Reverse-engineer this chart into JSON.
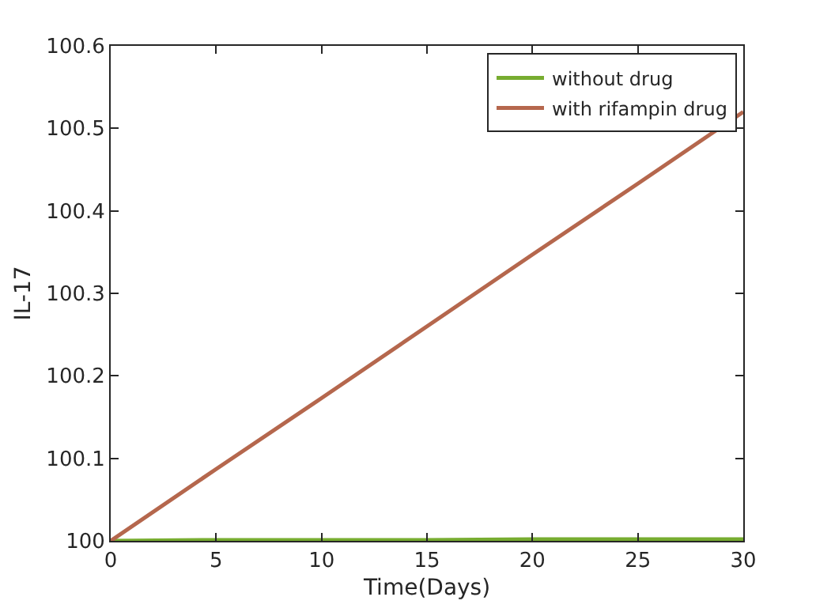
{
  "chart_data": {
    "type": "line",
    "xlabel": "Time(Days)",
    "ylabel": "IL-17",
    "x": [
      0,
      5,
      10,
      15,
      20,
      25,
      30
    ],
    "series": [
      {
        "name": "without drug",
        "color": "#77ac30",
        "values": [
          100,
          100.001,
          100.001,
          100.001,
          100.002,
          100.002,
          100.002
        ]
      },
      {
        "name": "with rifampin drug",
        "color": "#b5674d",
        "values": [
          100,
          100.087,
          100.173,
          100.26,
          100.347,
          100.433,
          100.52
        ]
      }
    ],
    "xlim": [
      0,
      30
    ],
    "xticks": [
      0,
      5,
      10,
      15,
      20,
      25,
      30
    ],
    "ylim": [
      100,
      100.6
    ],
    "yticks": [
      100,
      100.1,
      100.2,
      100.3,
      100.4,
      100.5,
      100.6
    ],
    "legend": "top right",
    "marker": "none",
    "line_style": "solid"
  }
}
